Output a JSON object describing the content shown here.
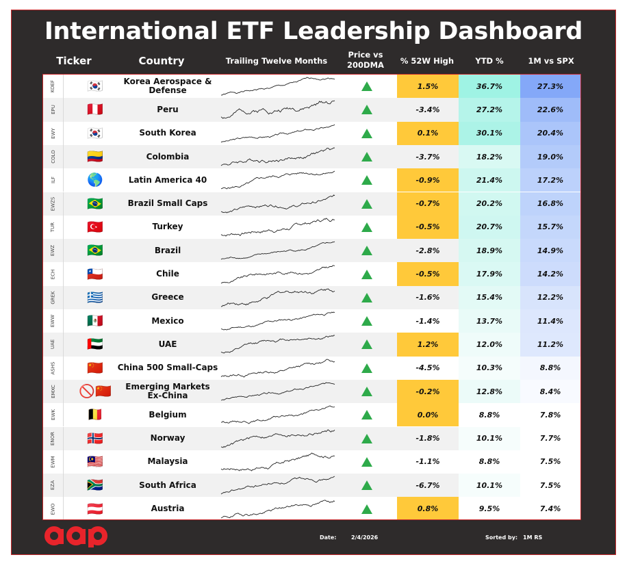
{
  "title": "International ETF Leadership Dashboard",
  "headers": {
    "ticker": "Ticker",
    "country": "Country",
    "ttm": "Trailing Twelve Months",
    "price_line1": "Price vs",
    "price_line2": "200DMA",
    "high52": "% 52W High",
    "ytd": "YTD %",
    "spx": "1M vs SPX"
  },
  "colors": {
    "frame": "#2e2b2b",
    "border": "#c8282b",
    "highlight_yellow": "#ffc93a",
    "arrow_green": "#2eaa4a",
    "logo_red": "#e8242b"
  },
  "rows": [
    {
      "ticker": "KOEF",
      "flag": "🇰🇷",
      "country": "Korea Aerospace & Defense",
      "high52": "1.5%",
      "ytd": "36.7%",
      "spx": "27.3%",
      "near_high": true,
      "ytd_color": "#9ff3e4",
      "spx_color": "#84a8f8",
      "spark_seed": 1
    },
    {
      "ticker": "EPU",
      "flag": "🇵🇪",
      "country": "Peru",
      "high52": "-3.4%",
      "ytd": "27.2%",
      "spx": "22.6%",
      "near_high": false,
      "ytd_color": "#b5f4ea",
      "spx_color": "#9fbcf9",
      "spark_seed": 2
    },
    {
      "ticker": "EWY",
      "flag": "🇰🇷",
      "country": "South Korea",
      "high52": "0.1%",
      "ytd": "30.1%",
      "spx": "20.4%",
      "near_high": true,
      "ytd_color": "#acf3e7",
      "spx_color": "#abc5fa",
      "spark_seed": 3
    },
    {
      "ticker": "COLO",
      "flag": "🇨🇴",
      "country": "Colombia",
      "high52": "-3.7%",
      "ytd": "18.2%",
      "spx": "19.0%",
      "near_high": false,
      "ytd_color": "#d9f9f3",
      "spx_color": "#b3cbfa",
      "spark_seed": 4
    },
    {
      "ticker": "ILF",
      "flag": "🌎",
      "country": "Latin America 40",
      "high52": "-0.9%",
      "ytd": "21.4%",
      "spx": "17.2%",
      "near_high": true,
      "ytd_color": "#cdf7f0",
      "spx_color": "#bcd1fb",
      "spark_seed": 5
    },
    {
      "ticker": "EWZS",
      "flag": "🇧🇷",
      "country": "Brazil Small Caps",
      "high52": "-0.7%",
      "ytd": "20.2%",
      "spx": "16.8%",
      "near_high": true,
      "ytd_color": "#d1f8f1",
      "spx_color": "#bed3fb",
      "spark_seed": 6
    },
    {
      "ticker": "TUR",
      "flag": "🇹🇷",
      "country": "Turkey",
      "high52": "-0.5%",
      "ytd": "20.7%",
      "spx": "15.7%",
      "near_high": true,
      "ytd_color": "#cff7f1",
      "spx_color": "#c4d7fb",
      "spark_seed": 7
    },
    {
      "ticker": "EWZ",
      "flag": "🇧🇷",
      "country": "Brazil",
      "high52": "-2.8%",
      "ytd": "18.9%",
      "spx": "14.9%",
      "near_high": false,
      "ytd_color": "#d6f8f2",
      "spx_color": "#c9dafc",
      "spark_seed": 8
    },
    {
      "ticker": "ECH",
      "flag": "🇨🇱",
      "country": "Chile",
      "high52": "-0.5%",
      "ytd": "17.9%",
      "spx": "14.2%",
      "near_high": true,
      "ytd_color": "#daf9f4",
      "spx_color": "#cddcfc",
      "spark_seed": 9
    },
    {
      "ticker": "GREK",
      "flag": "🇬🇷",
      "country": "Greece",
      "high52": "-1.6%",
      "ytd": "15.4%",
      "spx": "12.2%",
      "near_high": false,
      "ytd_color": "#e3faf6",
      "spx_color": "#d8e4fc",
      "spark_seed": 10
    },
    {
      "ticker": "EWW",
      "flag": "🇲🇽",
      "country": "Mexico",
      "high52": "-1.4%",
      "ytd": "13.7%",
      "spx": "11.4%",
      "near_high": false,
      "ytd_color": "#e9fbf8",
      "spx_color": "#dde7fd",
      "spark_seed": 11
    },
    {
      "ticker": "UAE",
      "flag": "🇦🇪",
      "country": "UAE",
      "high52": "1.2%",
      "ytd": "12.0%",
      "spx": "11.2%",
      "near_high": true,
      "ytd_color": "#effcfa",
      "spx_color": "#dee8fd",
      "spark_seed": 12
    },
    {
      "ticker": "ASHS",
      "flag": "🇨🇳",
      "country": "China 500 Small-Caps",
      "high52": "-4.5%",
      "ytd": "10.3%",
      "spx": "8.8%",
      "near_high": false,
      "ytd_color": "#f5fdfc",
      "spx_color": "#f4f7fe",
      "spark_seed": 13
    },
    {
      "ticker": "EMXC",
      "flag": "🚫🇨🇳",
      "country": "Emerging Markets Ex-China",
      "high52": "-0.2%",
      "ytd": "12.8%",
      "spx": "8.4%",
      "near_high": true,
      "ytd_color": "#ecfbf9",
      "spx_color": "#f8faff",
      "spark_seed": 14
    },
    {
      "ticker": "EWK",
      "flag": "🇧🇪",
      "country": "Belgium",
      "high52": "0.0%",
      "ytd": "8.8%",
      "spx": "7.8%",
      "near_high": true,
      "ytd_color": "#ffffff",
      "spx_color": "#ffffff",
      "spark_seed": 15
    },
    {
      "ticker": "ENOR",
      "flag": "🇳🇴",
      "country": "Norway",
      "high52": "-1.8%",
      "ytd": "10.1%",
      "spx": "7.7%",
      "near_high": false,
      "ytd_color": "#f6fdfc",
      "spx_color": "#ffffff",
      "spark_seed": 16
    },
    {
      "ticker": "EWM",
      "flag": "🇲🇾",
      "country": "Malaysia",
      "high52": "-1.1%",
      "ytd": "8.8%",
      "spx": "7.5%",
      "near_high": false,
      "ytd_color": "#ffffff",
      "spx_color": "#ffffff",
      "spark_seed": 17
    },
    {
      "ticker": "EZA",
      "flag": "🇿🇦",
      "country": "South Africa",
      "high52": "-6.7%",
      "ytd": "10.1%",
      "spx": "7.5%",
      "near_high": false,
      "ytd_color": "#f6fdfc",
      "spx_color": "#ffffff",
      "spark_seed": 18
    },
    {
      "ticker": "EWO",
      "flag": "🇦🇹",
      "country": "Austria",
      "high52": "0.8%",
      "ytd": "9.5%",
      "spx": "7.4%",
      "near_high": true,
      "ytd_color": "#ffffff",
      "spx_color": "#ffffff",
      "spark_seed": 19
    }
  ],
  "footer": {
    "logo_text": "aap",
    "date_label": "Date:",
    "date": "2/4/2026",
    "sort_label": "Sorted by:",
    "sort": "1M RS"
  }
}
